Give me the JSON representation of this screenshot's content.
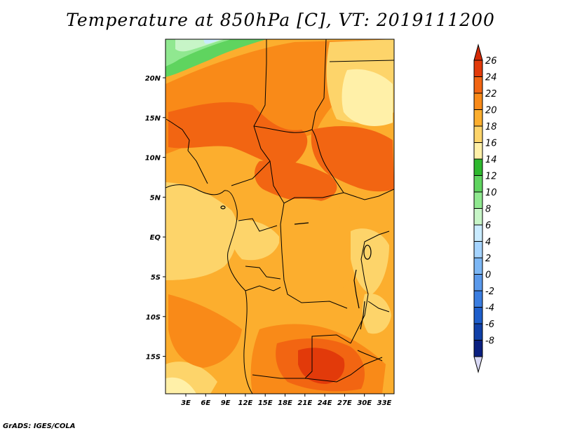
{
  "title": "Temperature at 850hPa [C], VT: 2019111200",
  "footer": "GrADS: IGES/COLA",
  "map": {
    "lat_labels": [
      "20N",
      "15N",
      "10N",
      "5N",
      "EQ",
      "5S",
      "10S",
      "15S"
    ],
    "lon_labels": [
      "3E",
      "6E",
      "9E",
      "12E",
      "15E",
      "18E",
      "21E",
      "24E",
      "27E",
      "30E",
      "33E"
    ],
    "lon_range": [
      0.5,
      34.5
    ],
    "lat_range": [
      -19.5,
      25
    ]
  },
  "colorbar": {
    "labels": [
      "26",
      "24",
      "22",
      "20",
      "18",
      "16",
      "14",
      "12",
      "10",
      "8",
      "6",
      "4",
      "2",
      "0",
      "-2",
      "-4",
      "-6",
      "-8"
    ],
    "colors": [
      "#e23a0a",
      "#f26512",
      "#f98a18",
      "#fcae2e",
      "#fdd46a",
      "#fff0a8",
      "#2eb82e",
      "#5fd45f",
      "#90e890",
      "#c7f5c7",
      "#c9ebff",
      "#a5d4ff",
      "#7cb7f5",
      "#5a99eb",
      "#3a7de0",
      "#1e5ecb",
      "#1040a8",
      "#0a1f80"
    ],
    "top_arrow_color": "#d42a06",
    "bottom_arrow_color": "#d9d9f5"
  }
}
